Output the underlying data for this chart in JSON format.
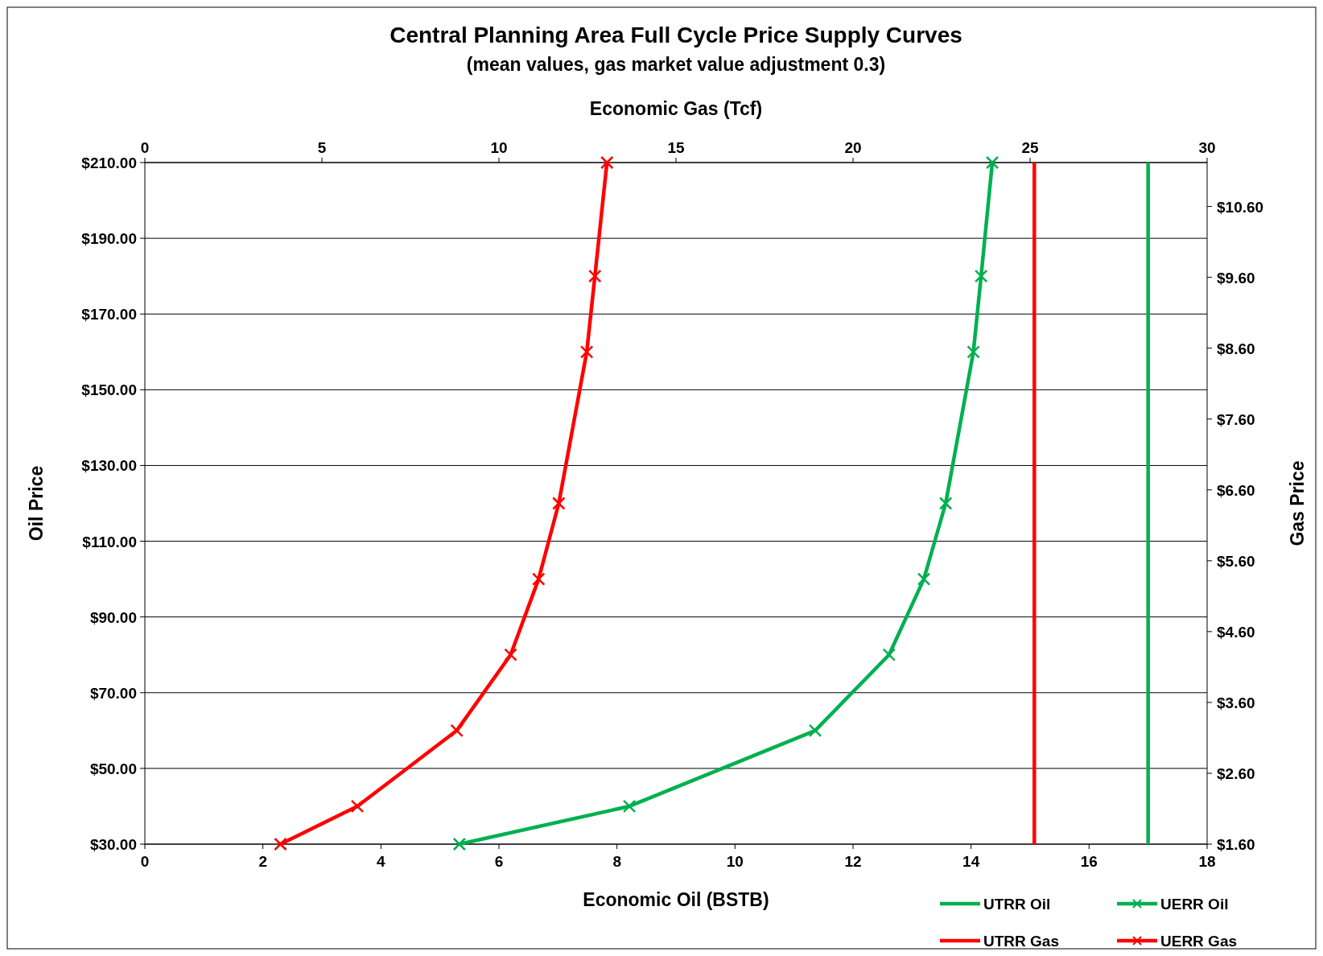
{
  "chart_data": {
    "type": "line",
    "title": "Central Planning Area Full Cycle Price Supply Curves",
    "subtitle": "(mean values, gas market value adjustment 0.3)",
    "xlabel": "Economic Oil (BSTB)",
    "x2label": "Economic Gas (Tcf)",
    "ylabel": "Oil Price",
    "y2label": "Gas Price",
    "xlim": [
      0,
      18
    ],
    "xticks": [
      0,
      2,
      4,
      6,
      8,
      10,
      12,
      14,
      16,
      18
    ],
    "x2lim": [
      0,
      30
    ],
    "x2ticks": [
      0,
      5,
      10,
      15,
      20,
      25,
      30
    ],
    "ylim": [
      30,
      210
    ],
    "yticks": [
      {
        "value": 30,
        "label": "$30.00"
      },
      {
        "value": 50,
        "label": "$50.00"
      },
      {
        "value": 70,
        "label": "$70.00"
      },
      {
        "value": 90,
        "label": "$90.00"
      },
      {
        "value": 110,
        "label": "$110.00"
      },
      {
        "value": 130,
        "label": "$130.00"
      },
      {
        "value": 150,
        "label": "$150.00"
      },
      {
        "value": 170,
        "label": "$170.00"
      },
      {
        "value": 190,
        "label": "$190.00"
      },
      {
        "value": 210,
        "label": "$210.00"
      }
    ],
    "y2lim": [
      1.6,
      11.22
    ],
    "y2ticks": [
      {
        "value": 1.6,
        "label": "$1.60"
      },
      {
        "value": 2.6,
        "label": "$2.60"
      },
      {
        "value": 3.6,
        "label": "$3.60"
      },
      {
        "value": 4.6,
        "label": "$4.60"
      },
      {
        "value": 5.6,
        "label": "$5.60"
      },
      {
        "value": 6.6,
        "label": "$6.60"
      },
      {
        "value": 7.6,
        "label": "$7.60"
      },
      {
        "value": 8.6,
        "label": "$8.60"
      },
      {
        "value": 9.6,
        "label": "$9.60"
      },
      {
        "value": 10.6,
        "label": "$10.60"
      }
    ],
    "grid": "y",
    "legend": "bottom right",
    "line_style": "solid",
    "series": [
      {
        "name": "UTRR Oil",
        "color": "#00b050",
        "marker": "none",
        "x": [
          17,
          17
        ],
        "values": [
          30,
          210
        ]
      },
      {
        "name": "UERR Oil",
        "color": "#00b050",
        "marker": "cross",
        "x": [
          5.33,
          8.21,
          11.36,
          12.61,
          13.2,
          13.57,
          14.04,
          14.17,
          14.36
        ],
        "values": [
          30,
          40,
          60,
          80,
          100,
          120,
          160,
          180,
          210
        ]
      },
      {
        "name": "UTRR Gas",
        "color": "#ff0000",
        "marker": "none",
        "axis": "x2",
        "x": [
          25.12,
          25.12
        ],
        "values": [
          30,
          210
        ]
      },
      {
        "name": "UERR Gas",
        "color": "#ff0000",
        "marker": "cross",
        "axis": "x2",
        "x": [
          3.83,
          6.0,
          8.81,
          10.33,
          11.12,
          11.69,
          12.48,
          12.71,
          13.05
        ],
        "values": [
          30,
          40,
          60,
          80,
          100,
          120,
          160,
          180,
          210
        ]
      }
    ]
  }
}
